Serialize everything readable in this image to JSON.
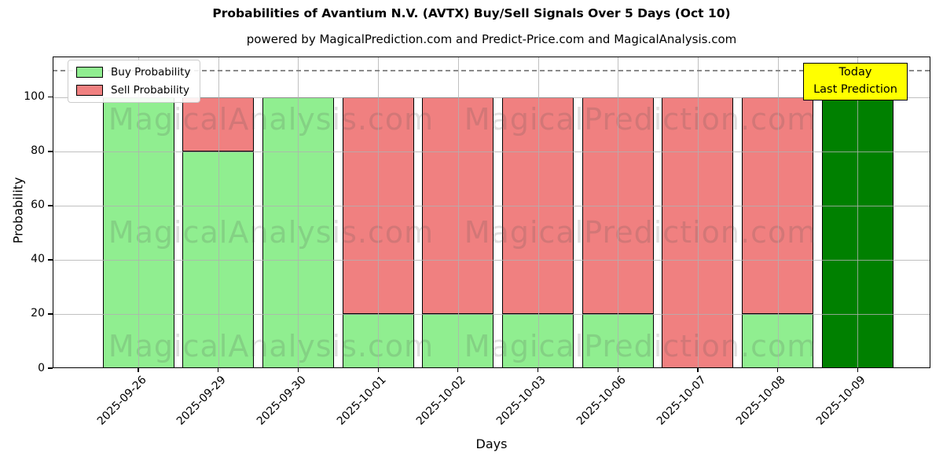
{
  "chart_data": {
    "type": "bar",
    "stacked": true,
    "title": "Probabilities of Avantium N.V. (AVTX) Buy/Sell Signals Over 5 Days (Oct 10)",
    "subtitle": "powered by MagicalPrediction.com and Predict-Price.com and MagicalAnalysis.com",
    "xlabel": "Days",
    "ylabel": "Probability",
    "categories": [
      "2025-09-26",
      "2025-09-29",
      "2025-09-30",
      "2025-10-01",
      "2025-10-02",
      "2025-10-03",
      "2025-10-06",
      "2025-10-07",
      "2025-10-08",
      "2025-10-09"
    ],
    "series": [
      {
        "name": "Buy Probability",
        "color": "#90EE90",
        "values": [
          100,
          80,
          100,
          20,
          20,
          20,
          20,
          0,
          20,
          0
        ]
      },
      {
        "name": "Sell Probability",
        "color": "#F08080",
        "values": [
          0,
          20,
          0,
          80,
          80,
          80,
          80,
          100,
          80,
          0
        ]
      },
      {
        "name": "Today Last Prediction",
        "color": "#008000",
        "values": [
          0,
          0,
          0,
          0,
          0,
          0,
          0,
          0,
          0,
          100
        ]
      }
    ],
    "ylim": [
      0,
      115
    ],
    "yticks": [
      0,
      20,
      40,
      60,
      80,
      100
    ],
    "dashed_line_y": 110,
    "grid": true,
    "legend_position": "upper left",
    "bar_edge_color": "#000000"
  },
  "legend": {
    "items": [
      {
        "label": "Buy Probability",
        "color": "#90EE90"
      },
      {
        "label": "Sell Probability",
        "color": "#F08080"
      }
    ]
  },
  "annotation": {
    "line1": "Today",
    "line2": "Last Prediction",
    "bg_color": "#FFFF00",
    "border_color": "#000000"
  },
  "watermarks": {
    "texts": [
      "MagicalAnalysis.com",
      "MagicalPrediction.com"
    ]
  },
  "colors": {
    "background": "#FFFFFF",
    "grid": "#B0B0B0",
    "dashed_line": "#8A8A8A",
    "text": "#000000"
  }
}
